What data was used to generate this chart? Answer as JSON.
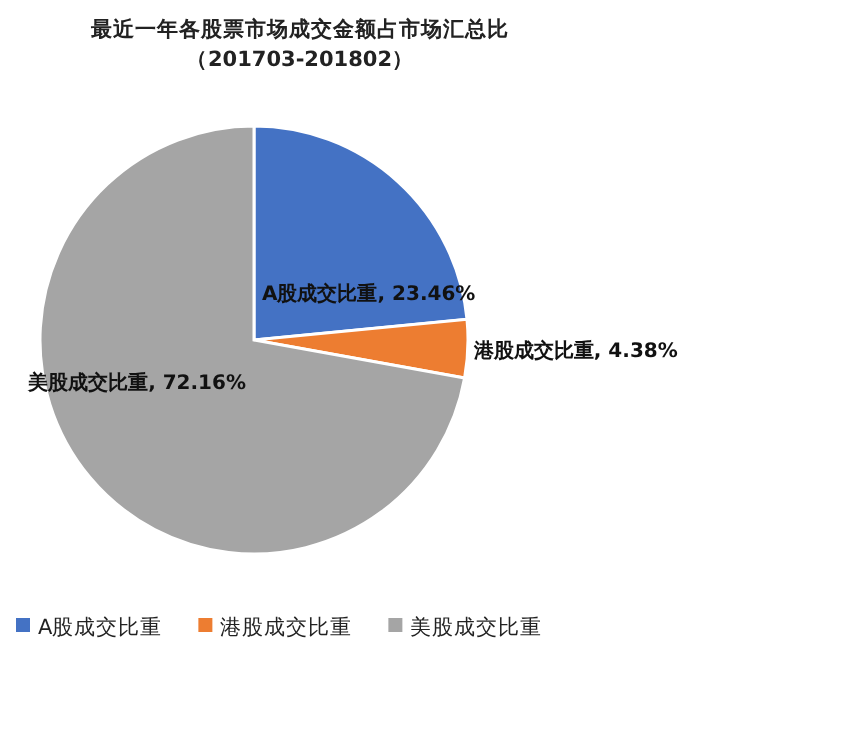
{
  "chart_data": {
    "type": "pie",
    "title": "最近一年各股票市场成交金额占市场汇总比",
    "subtitle": "（201703-201802）",
    "categories": [
      "A股成交比重",
      "港股成交比重",
      "美股成交比重"
    ],
    "values": [
      23.46,
      4.38,
      72.16
    ],
    "colors": [
      "#4472c4",
      "#ed7d31",
      "#a5a5a5"
    ],
    "value_labels": [
      ", 23.46%",
      ", 4.38%",
      ", 72.16%"
    ],
    "legend": "bottom"
  }
}
